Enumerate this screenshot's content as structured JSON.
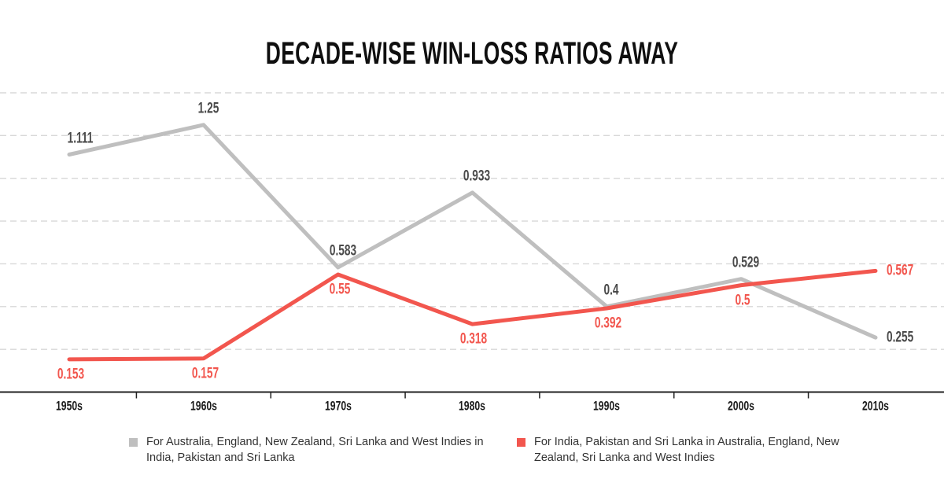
{
  "title": "DECADE-WISE WIN-LOSS RATIOS AWAY",
  "chart_data": {
    "type": "line",
    "title": "DECADE-WISE WIN-LOSS RATIOS AWAY",
    "categories": [
      "1950s",
      "1960s",
      "1970s",
      "1980s",
      "1990s",
      "2000s",
      "2010s"
    ],
    "series": [
      {
        "name": "For Australia, England, New Zealand, Sri Lanka and West Indies in India, Pakistan and Sri Lanka",
        "color": "#bfbfbf",
        "label_color": "#4a4a4a",
        "values": [
          1.111,
          1.25,
          0.583,
          0.933,
          0.4,
          0.529,
          0.255
        ],
        "labels": [
          "1.111",
          "1.25",
          "0.583",
          "0.933",
          "0.4",
          "0.529",
          "0.255"
        ],
        "label_side": "above"
      },
      {
        "name": "For India, Pakistan and Sri Lanka in Australia, England, New Zealand, Sri Lanka and West Indies",
        "color": "#f2564e",
        "label_color": "#f2564e",
        "values": [
          0.153,
          0.157,
          0.55,
          0.318,
          0.392,
          0.5,
          0.567
        ],
        "labels": [
          "0.153",
          "0.157",
          "0.55",
          "0.318",
          "0.392",
          "0.5",
          "0.567"
        ],
        "label_side": "below"
      }
    ],
    "ylim": [
      0,
      1.4
    ],
    "grid_step": 0.2,
    "grid": "horizontal dashed, no y-axis tick labels",
    "legend_position": "bottom",
    "colors": {
      "grid_line": "#d8d8d8",
      "axis_line": "#222222",
      "series_away_gray": "#bfbfbf",
      "series_subcontinent_red": "#f2564e",
      "title_text": "#0f0f0f",
      "legend_text": "#333333"
    }
  }
}
